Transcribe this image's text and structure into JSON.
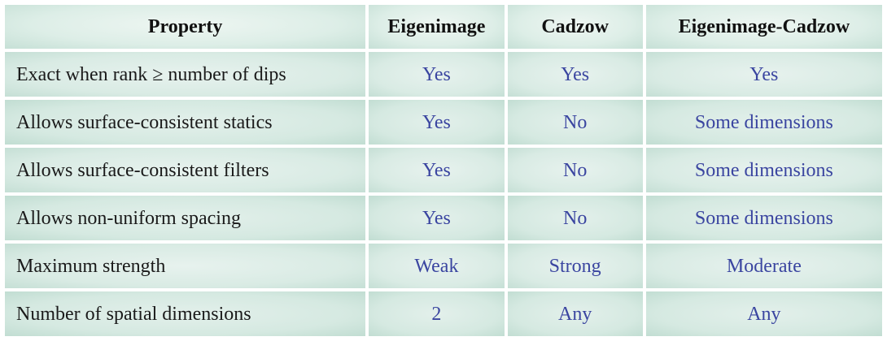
{
  "table": {
    "headers": [
      "Property",
      "Eigenimage",
      "Cadzow",
      "Eigenimage-Cadzow"
    ],
    "rows": [
      {
        "property": "Exact when rank ≥ number of dips",
        "eigenimage": "Yes",
        "cadzow": "Yes",
        "eigenimage_cadzow": "Yes"
      },
      {
        "property": "Allows surface-consistent statics",
        "eigenimage": "Yes",
        "cadzow": "No",
        "eigenimage_cadzow": "Some dimensions"
      },
      {
        "property": "Allows surface-consistent filters",
        "eigenimage": "Yes",
        "cadzow": "No",
        "eigenimage_cadzow": "Some dimensions"
      },
      {
        "property": "Allows non-uniform spacing",
        "eigenimage": "Yes",
        "cadzow": "No",
        "eigenimage_cadzow": "Some dimensions"
      },
      {
        "property": "Maximum strength",
        "eigenimage": "Weak",
        "cadzow": "Strong",
        "eigenimage_cadzow": "Moderate"
      },
      {
        "property": "Number of spatial dimensions",
        "eigenimage": "2",
        "cadzow": "Any",
        "eigenimage_cadzow": "Any"
      }
    ]
  },
  "colors": {
    "cell_bg": "#d9ebe4",
    "value_text": "#3a45a0",
    "property_text": "#1a1a1a"
  }
}
